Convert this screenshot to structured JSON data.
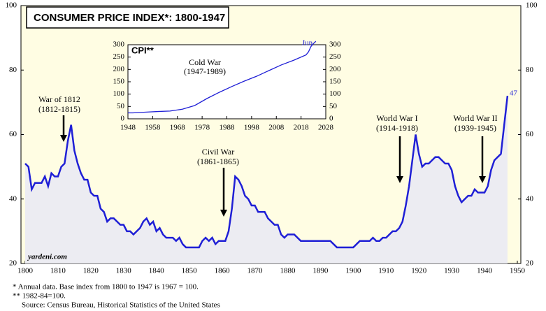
{
  "chart_data": [
    {
      "type": "line",
      "title": "CONSUMER PRICE INDEX*: 1800-1947",
      "x": [
        1800,
        1801,
        1802,
        1803,
        1804,
        1805,
        1806,
        1807,
        1808,
        1809,
        1810,
        1811,
        1812,
        1813,
        1814,
        1815,
        1816,
        1817,
        1818,
        1819,
        1820,
        1821,
        1822,
        1823,
        1824,
        1825,
        1826,
        1827,
        1828,
        1829,
        1830,
        1831,
        1832,
        1833,
        1834,
        1835,
        1836,
        1837,
        1838,
        1839,
        1840,
        1841,
        1842,
        1843,
        1844,
        1845,
        1846,
        1847,
        1848,
        1849,
        1850,
        1851,
        1852,
        1853,
        1854,
        1855,
        1856,
        1857,
        1858,
        1859,
        1860,
        1861,
        1862,
        1863,
        1864,
        1865,
        1866,
        1867,
        1868,
        1869,
        1870,
        1871,
        1872,
        1873,
        1874,
        1875,
        1876,
        1877,
        1878,
        1879,
        1880,
        1881,
        1882,
        1883,
        1884,
        1885,
        1886,
        1887,
        1888,
        1889,
        1890,
        1891,
        1892,
        1893,
        1894,
        1895,
        1896,
        1897,
        1898,
        1899,
        1900,
        1901,
        1902,
        1903,
        1904,
        1905,
        1906,
        1907,
        1908,
        1909,
        1910,
        1911,
        1912,
        1913,
        1914,
        1915,
        1916,
        1917,
        1918,
        1919,
        1920,
        1921,
        1922,
        1923,
        1924,
        1925,
        1926,
        1927,
        1928,
        1929,
        1930,
        1931,
        1932,
        1933,
        1934,
        1935,
        1936,
        1937,
        1938,
        1939,
        1940,
        1941,
        1942,
        1943,
        1944,
        1945,
        1946,
        1947
      ],
      "values": [
        51,
        50,
        43,
        45,
        45,
        45,
        47,
        44,
        48,
        47,
        47,
        50,
        51,
        58,
        63,
        55,
        51,
        48,
        46,
        46,
        42,
        41,
        41,
        37,
        36,
        33,
        34,
        34,
        33,
        32,
        32,
        30,
        30,
        29,
        30,
        31,
        33,
        34,
        32,
        33,
        30,
        31,
        29,
        28,
        28,
        28,
        27,
        28,
        26,
        25,
        25,
        25,
        25,
        25,
        27,
        28,
        27,
        28,
        26,
        27,
        27,
        27,
        30,
        37,
        47,
        46,
        44,
        41,
        40,
        38,
        38,
        36,
        36,
        36,
        34,
        33,
        32,
        32,
        29,
        28,
        29,
        29,
        29,
        28,
        27,
        27,
        27,
        27,
        27,
        27,
        27,
        27,
        27,
        27,
        26,
        25,
        25,
        25,
        25,
        25,
        25,
        26,
        27,
        27,
        27,
        27,
        28,
        27,
        27,
        28,
        28,
        29,
        30,
        30,
        31,
        33,
        38,
        44,
        52,
        60,
        54,
        50,
        51,
        51,
        52,
        53,
        53,
        52,
        51,
        51,
        49,
        44,
        41,
        39,
        40,
        41,
        41,
        43,
        42,
        42,
        42,
        44,
        49,
        52,
        53,
        54,
        63,
        72
      ],
      "color": "#1f1fd6",
      "end_label": "47",
      "xlim": [
        1800,
        1950
      ],
      "xticks": [
        1800,
        1810,
        1820,
        1830,
        1840,
        1850,
        1860,
        1870,
        1880,
        1890,
        1900,
        1910,
        1920,
        1930,
        1940,
        1950
      ],
      "ylim": [
        20,
        100
      ],
      "yticks": [
        20,
        40,
        60,
        80,
        100
      ],
      "annotations": [
        [
          "War of 1812",
          "(1812-1815)"
        ],
        [
          "Civil War",
          "(1861-1865)"
        ],
        [
          "World War I",
          "(1914-1918)"
        ],
        [
          "World War II",
          "(1939-1945)"
        ]
      ],
      "watermark": "yardeni.com",
      "footnotes": [
        "*   Annual data. Base index from 1800 to 1947 is 1967 = 100.",
        "**  1982-84=100.",
        "Source: Census Bureau, Historical Statistics of the United States"
      ]
    },
    {
      "type": "line",
      "title": "CPI**",
      "x": [
        1948,
        1950,
        1955,
        1960,
        1965,
        1970,
        1975,
        1980,
        1985,
        1990,
        1995,
        2000,
        2005,
        2010,
        2015,
        2020,
        2021,
        2022,
        2023,
        2024
      ],
      "values": [
        24.1,
        24.1,
        26.8,
        29.6,
        31.5,
        38.8,
        53.8,
        82.4,
        107.6,
        130.7,
        152.4,
        172.2,
        195.3,
        218.1,
        237.0,
        258.8,
        271.0,
        292.7,
        304.7,
        314.0
      ],
      "color": "#1f1fd6",
      "end_label": "Jun",
      "annotation": [
        "Cold War",
        "(1947-1989)"
      ],
      "xlim": [
        1948,
        2028
      ],
      "xticks": [
        1948,
        1958,
        1968,
        1978,
        1988,
        1998,
        2008,
        2018,
        2028
      ],
      "ylim": [
        0,
        300
      ],
      "yticks": [
        0,
        50,
        100,
        150,
        200,
        250,
        300
      ]
    }
  ]
}
